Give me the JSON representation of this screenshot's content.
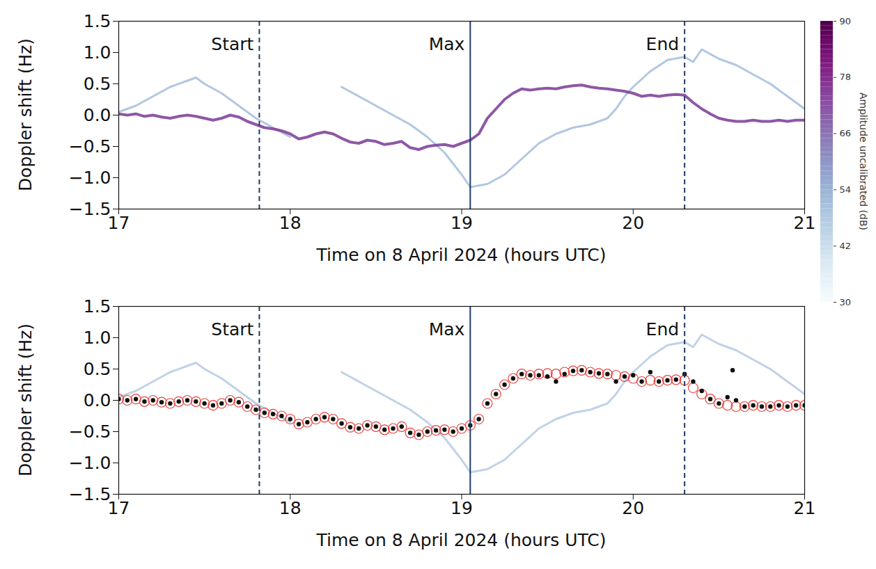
{
  "chart_data": [
    {
      "type": "line",
      "x_label": "Time on 8 April 2024 (hours UTC)",
      "y_label": "Doppler shift (Hz)",
      "xlim": [
        17,
        21
      ],
      "xticks": [
        17,
        18,
        19,
        20,
        21
      ],
      "ylim": [
        -1.5,
        1.5
      ],
      "yticks": [
        {
          "value": -1.5,
          "label": "−1.5"
        },
        {
          "value": -1,
          "label": "−1.0"
        },
        {
          "value": -0.5,
          "label": "−0.5"
        },
        {
          "value": 0,
          "label": "0.0"
        },
        0.5,
        {
          "value": 1,
          "label": "1.0"
        },
        1.5
      ],
      "grid": false,
      "annotations": [
        {
          "text": "Start",
          "x": 17.82,
          "line_style": "dashed"
        },
        {
          "text": "Max",
          "x": 19.05,
          "line_style": "solid"
        },
        {
          "text": "End",
          "x": 20.3,
          "line_style": "dashed"
        }
      ],
      "colorbar": {
        "range": [
          30,
          90
        ],
        "ticks": [
          30,
          42,
          54,
          66,
          78,
          90
        ],
        "label": "Amplitude uncalibrated (dB)"
      },
      "series": [
        {
          "type": "line",
          "color": "#a9c1de",
          "x": [
            17.0,
            17.1,
            17.2,
            17.3,
            17.4,
            17.45,
            17.5,
            17.6,
            17.7,
            17.8,
            17.9,
            18.0
          ],
          "values": [
            0.05,
            0.15,
            0.3,
            0.45,
            0.55,
            0.6,
            0.5,
            0.35,
            0.15,
            -0.05,
            -0.2,
            -0.35
          ]
        },
        {
          "type": "line",
          "color": "#a9c1de",
          "x": [
            18.3,
            18.4,
            18.5,
            18.6,
            18.7,
            18.8,
            18.9,
            19.0,
            19.05
          ],
          "values": [
            0.45,
            0.3,
            0.15,
            0.0,
            -0.15,
            -0.35,
            -0.6,
            -0.95,
            -1.15
          ]
        },
        {
          "type": "line",
          "color": "#a9c1de",
          "x": [
            19.05,
            19.15,
            19.25,
            19.35,
            19.45,
            19.55,
            19.65,
            19.75,
            19.85,
            19.9,
            19.95,
            20.0,
            20.1,
            20.2,
            20.3,
            20.35,
            20.4,
            20.5,
            20.6,
            20.7,
            20.8,
            20.9,
            21.0
          ],
          "values": [
            -1.15,
            -1.1,
            -0.95,
            -0.7,
            -0.45,
            -0.3,
            -0.2,
            -0.15,
            -0.05,
            0.1,
            0.3,
            0.45,
            0.7,
            0.88,
            0.93,
            0.85,
            1.05,
            0.9,
            0.8,
            0.65,
            0.5,
            0.3,
            0.1
          ]
        },
        {
          "type": "line",
          "color": "#7a3a96",
          "x": [
            17.0,
            17.05,
            17.1,
            17.15,
            17.2,
            17.25,
            17.3,
            17.35,
            17.4,
            17.45,
            17.5,
            17.55,
            17.6,
            17.65,
            17.7,
            17.75,
            17.8,
            17.85,
            17.9,
            17.95,
            18.0,
            18.05,
            18.1,
            18.15,
            18.2,
            18.25,
            18.3,
            18.35,
            18.4,
            18.45,
            18.5,
            18.55,
            18.6,
            18.65,
            18.7,
            18.75,
            18.8,
            18.85,
            18.9,
            18.95,
            19.0,
            19.05,
            19.1,
            19.15,
            19.2,
            19.25,
            19.3,
            19.35,
            19.4,
            19.45,
            19.5,
            19.55,
            19.6,
            19.65,
            19.7,
            19.75,
            19.8,
            19.85,
            19.9,
            19.95,
            20.0,
            20.05,
            20.1,
            20.15,
            20.2,
            20.25,
            20.3,
            20.35,
            20.4,
            20.45,
            20.5,
            20.55,
            20.6,
            20.65,
            20.7,
            20.75,
            20.8,
            20.85,
            20.9,
            20.95,
            21.0
          ],
          "values": [
            0.02,
            0.0,
            0.02,
            -0.02,
            0.0,
            -0.03,
            -0.05,
            -0.02,
            0.0,
            -0.02,
            -0.05,
            -0.08,
            -0.05,
            0.0,
            -0.03,
            -0.1,
            -0.15,
            -0.2,
            -0.22,
            -0.25,
            -0.3,
            -0.38,
            -0.35,
            -0.3,
            -0.27,
            -0.3,
            -0.37,
            -0.43,
            -0.45,
            -0.4,
            -0.42,
            -0.47,
            -0.45,
            -0.42,
            -0.52,
            -0.55,
            -0.5,
            -0.48,
            -0.47,
            -0.5,
            -0.45,
            -0.4,
            -0.3,
            -0.05,
            0.1,
            0.25,
            0.35,
            0.42,
            0.4,
            0.42,
            0.43,
            0.42,
            0.45,
            0.47,
            0.48,
            0.45,
            0.43,
            0.42,
            0.4,
            0.38,
            0.35,
            0.3,
            0.32,
            0.3,
            0.32,
            0.33,
            0.32,
            0.2,
            0.1,
            0.02,
            -0.05,
            -0.08,
            -0.1,
            -0.1,
            -0.08,
            -0.1,
            -0.1,
            -0.08,
            -0.1,
            -0.08,
            -0.08
          ]
        }
      ]
    },
    {
      "type": "line",
      "x_label": "Time on 8 April 2024 (hours UTC)",
      "y_label": "Doppler shift (Hz)",
      "xlim": [
        17,
        21
      ],
      "xticks": [
        17,
        18,
        19,
        20,
        21
      ],
      "ylim": [
        -1.5,
        1.5
      ],
      "yticks": [
        {
          "value": -1.5,
          "label": "−1.5"
        },
        {
          "value": -1,
          "label": "−1.0"
        },
        {
          "value": -0.5,
          "label": "−0.5"
        },
        {
          "value": 0,
          "label": "0.0"
        },
        0.5,
        {
          "value": 1,
          "label": "1.0"
        },
        1.5
      ],
      "grid": false,
      "annotations": [
        {
          "text": "Start",
          "x": 17.82,
          "line_style": "dashed"
        },
        {
          "text": "Max",
          "x": 19.05,
          "line_style": "solid"
        },
        {
          "text": "End",
          "x": 20.3,
          "line_style": "dashed"
        }
      ],
      "series": [
        {
          "type": "line",
          "color": "#b9cde4",
          "x": [
            17.0,
            17.1,
            17.2,
            17.3,
            17.4,
            17.45,
            17.5,
            17.6,
            17.7,
            17.8,
            17.9,
            18.0
          ],
          "values": [
            0.05,
            0.15,
            0.3,
            0.45,
            0.55,
            0.6,
            0.5,
            0.35,
            0.15,
            -0.05,
            -0.2,
            -0.35
          ]
        },
        {
          "type": "line",
          "color": "#b9cde4",
          "x": [
            18.3,
            18.4,
            18.5,
            18.6,
            18.7,
            18.8,
            18.9,
            19.0,
            19.05
          ],
          "values": [
            0.45,
            0.3,
            0.15,
            0.0,
            -0.15,
            -0.35,
            -0.6,
            -0.95,
            -1.15
          ]
        },
        {
          "type": "line",
          "color": "#b9cde4",
          "x": [
            19.05,
            19.15,
            19.25,
            19.35,
            19.45,
            19.55,
            19.65,
            19.75,
            19.85,
            19.9,
            19.95,
            20.0,
            20.1,
            20.2,
            20.3,
            20.35,
            20.4,
            20.5,
            20.6,
            20.7,
            20.8,
            20.9,
            21.0
          ],
          "values": [
            -1.15,
            -1.1,
            -0.95,
            -0.7,
            -0.45,
            -0.3,
            -0.2,
            -0.15,
            -0.05,
            0.1,
            0.3,
            0.45,
            0.7,
            0.88,
            0.93,
            0.85,
            1.05,
            0.9,
            0.8,
            0.65,
            0.5,
            0.3,
            0.1
          ]
        },
        {
          "type": "scatter",
          "marker": "circle_open",
          "color": "#e8413c",
          "x": [
            17.0,
            17.05,
            17.1,
            17.15,
            17.2,
            17.25,
            17.3,
            17.35,
            17.4,
            17.45,
            17.5,
            17.55,
            17.6,
            17.65,
            17.7,
            17.75,
            17.8,
            17.85,
            17.9,
            17.95,
            18.0,
            18.05,
            18.1,
            18.15,
            18.2,
            18.25,
            18.3,
            18.35,
            18.4,
            18.45,
            18.5,
            18.55,
            18.6,
            18.65,
            18.7,
            18.75,
            18.8,
            18.85,
            18.9,
            18.95,
            19.0,
            19.05,
            19.1,
            19.15,
            19.2,
            19.25,
            19.3,
            19.35,
            19.4,
            19.45,
            19.5,
            19.55,
            19.6,
            19.65,
            19.7,
            19.75,
            19.8,
            19.85,
            19.9,
            19.95,
            20.0,
            20.05,
            20.1,
            20.15,
            20.2,
            20.25,
            20.3,
            20.35,
            20.4,
            20.45,
            20.5,
            20.55,
            20.6,
            20.65,
            20.7,
            20.75,
            20.8,
            20.85,
            20.9,
            20.95,
            21.0
          ],
          "values": [
            0.02,
            0.0,
            0.02,
            -0.02,
            0.0,
            -0.03,
            -0.05,
            -0.02,
            0.0,
            -0.02,
            -0.05,
            -0.08,
            -0.05,
            0.0,
            -0.03,
            -0.1,
            -0.15,
            -0.2,
            -0.22,
            -0.25,
            -0.3,
            -0.38,
            -0.35,
            -0.3,
            -0.27,
            -0.3,
            -0.37,
            -0.43,
            -0.45,
            -0.4,
            -0.42,
            -0.47,
            -0.45,
            -0.42,
            -0.52,
            -0.55,
            -0.5,
            -0.48,
            -0.47,
            -0.5,
            -0.45,
            -0.4,
            -0.3,
            -0.05,
            0.1,
            0.25,
            0.35,
            0.42,
            0.4,
            0.42,
            0.43,
            0.42,
            0.45,
            0.47,
            0.48,
            0.45,
            0.43,
            0.42,
            0.4,
            0.38,
            0.35,
            0.3,
            0.32,
            0.3,
            0.32,
            0.33,
            0.32,
            0.2,
            0.1,
            0.02,
            -0.05,
            -0.08,
            -0.1,
            -0.1,
            -0.08,
            -0.1,
            -0.1,
            -0.08,
            -0.1,
            -0.08,
            -0.08
          ]
        },
        {
          "type": "scatter",
          "marker": "dot",
          "color": "#111111",
          "x": [
            17.0,
            17.05,
            17.1,
            17.15,
            17.2,
            17.25,
            17.3,
            17.35,
            17.4,
            17.45,
            17.5,
            17.55,
            17.6,
            17.65,
            17.7,
            17.75,
            17.8,
            17.85,
            17.9,
            17.95,
            18.0,
            18.05,
            18.1,
            18.15,
            18.2,
            18.25,
            18.3,
            18.35,
            18.4,
            18.45,
            18.5,
            18.55,
            18.6,
            18.65,
            18.7,
            18.75,
            18.8,
            18.85,
            18.9,
            18.95,
            19.0,
            19.05,
            19.1,
            19.15,
            19.2,
            19.25,
            19.3,
            19.35,
            19.4,
            19.45,
            19.5,
            19.55,
            19.6,
            19.65,
            19.7,
            19.75,
            19.8,
            19.85,
            19.9,
            19.95,
            20.0,
            20.05,
            20.1,
            20.15,
            20.2,
            20.25,
            20.3,
            20.35,
            20.4,
            20.45,
            20.5,
            20.55,
            20.58,
            20.6,
            20.65,
            20.7,
            20.75,
            20.8,
            20.85,
            20.9,
            20.95,
            21.0
          ],
          "values": [
            0.02,
            0.0,
            0.02,
            -0.02,
            0.0,
            -0.03,
            -0.05,
            -0.02,
            0.0,
            -0.02,
            -0.05,
            -0.08,
            -0.05,
            0.0,
            -0.03,
            -0.1,
            -0.15,
            -0.2,
            -0.22,
            -0.25,
            -0.3,
            -0.38,
            -0.35,
            -0.3,
            -0.27,
            -0.3,
            -0.37,
            -0.43,
            -0.45,
            -0.4,
            -0.42,
            -0.47,
            -0.45,
            -0.42,
            -0.52,
            -0.55,
            -0.5,
            -0.48,
            -0.47,
            -0.5,
            -0.45,
            -0.4,
            -0.3,
            -0.05,
            0.1,
            0.25,
            0.35,
            0.42,
            0.4,
            0.4,
            0.38,
            0.3,
            0.42,
            0.47,
            0.48,
            0.45,
            0.43,
            0.42,
            0.3,
            0.38,
            0.4,
            0.3,
            0.45,
            0.3,
            0.32,
            0.33,
            0.42,
            0.3,
            0.15,
            0.02,
            -0.05,
            0.05,
            0.48,
            0.0,
            -0.1,
            -0.08,
            -0.1,
            -0.1,
            -0.08,
            -0.1,
            -0.08,
            -0.08
          ]
        }
      ]
    }
  ]
}
